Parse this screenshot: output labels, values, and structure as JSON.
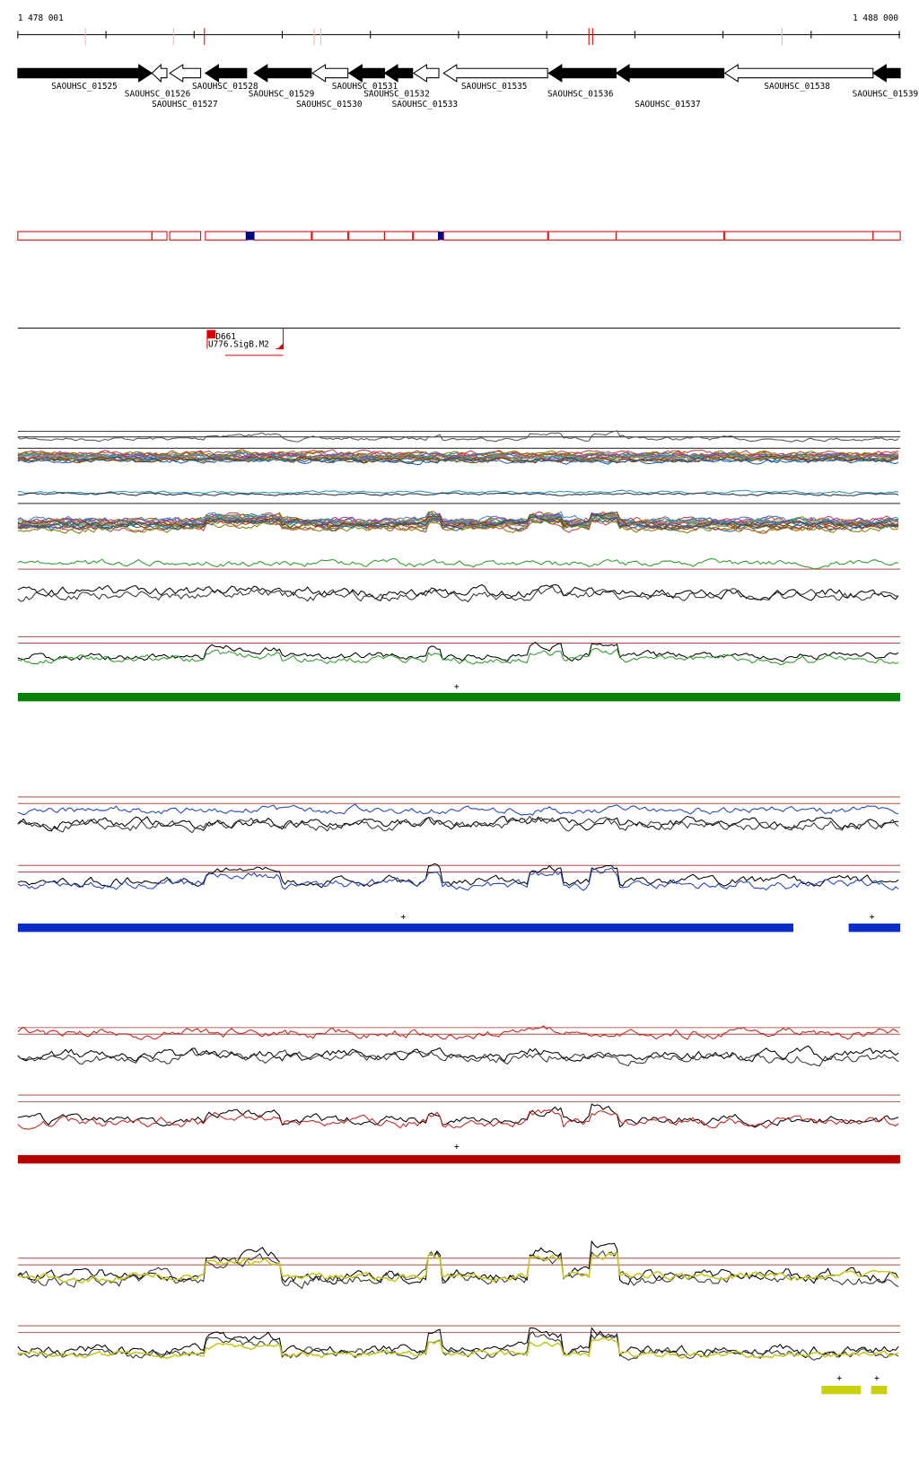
{
  "scale": {
    "start": "1 478 001",
    "end": "1 488 000"
  },
  "genes": [
    "SAOUHSC_01525",
    "SAOUHSC_01526",
    "SAOUHSC_01527",
    "SAOUHSC_01528",
    "SAOUHSC_01529",
    "SAOUHSC_01530",
    "SAOUHSC_01531",
    "SAOUHSC_01532",
    "SAOUHSC_01533",
    "SAOUHSC_01535",
    "SAOUHSC_01536",
    "SAOUHSC_01537",
    "SAOUHSC_01538",
    "SAOUHSC_01539"
  ],
  "features": [
    "D661",
    "U776.SigB.M2"
  ],
  "plus_marks": [
    "+",
    "+",
    "+",
    "+",
    "+",
    "+"
  ]
}
